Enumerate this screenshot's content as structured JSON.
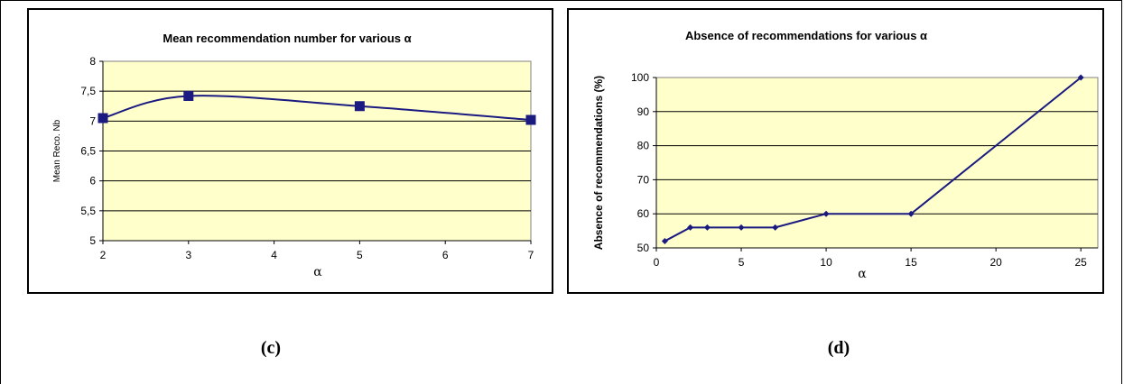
{
  "chart_data": [
    {
      "type": "line",
      "title": "Mean recommendation number for various α",
      "xlabel": "α",
      "ylabel": "Mean Reco. Nb",
      "x": [
        2,
        3,
        5,
        7
      ],
      "series": [
        {
          "values": [
            7.05,
            7.42,
            7.25,
            7.02
          ]
        }
      ],
      "xlim": [
        2,
        7
      ],
      "ylim": [
        5,
        8
      ],
      "xticks": [
        2,
        3,
        4,
        5,
        6,
        7
      ],
      "yticks": [
        "5",
        "5,5",
        "6",
        "6,5",
        "7",
        "7,5",
        "8"
      ],
      "ytick_values": [
        5,
        5.5,
        6,
        6.5,
        7,
        7.5,
        8
      ],
      "grid": true,
      "smooth": true,
      "marker": "square",
      "line_color": "#1a1a80",
      "plot_bg": "#ffffcc"
    },
    {
      "type": "line",
      "title": "Absence of recommendations for various α",
      "xlabel": "α",
      "ylabel": "Absence of recommendations (%)",
      "x": [
        0.5,
        2,
        3,
        5,
        7,
        10,
        15,
        25
      ],
      "series": [
        {
          "values": [
            52,
            56,
            56,
            56,
            56,
            60,
            60,
            100
          ]
        }
      ],
      "xlim": [
        0,
        26
      ],
      "ylim": [
        50,
        100
      ],
      "xticks": [
        0,
        5,
        10,
        15,
        20,
        25
      ],
      "yticks": [
        "50",
        "60",
        "70",
        "80",
        "90",
        "100"
      ],
      "ytick_values": [
        50,
        60,
        70,
        80,
        90,
        100
      ],
      "grid": true,
      "smooth": false,
      "marker": "diamond",
      "line_color": "#1a1a80",
      "plot_bg": "#ffffcc"
    }
  ],
  "captions": {
    "left": "(c)",
    "right": "(d)"
  }
}
